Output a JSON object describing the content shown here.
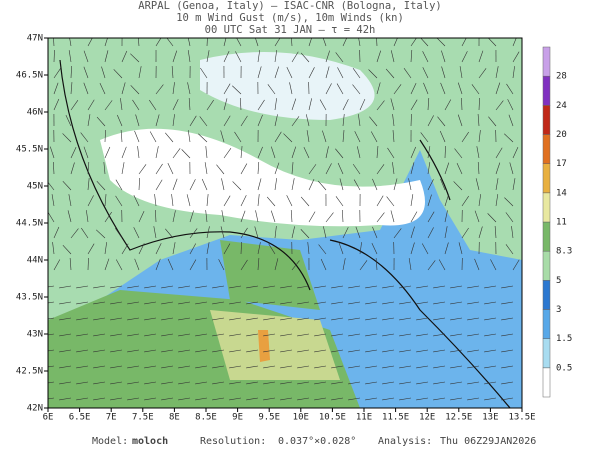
{
  "header": {
    "lines": [
      "ARPAL (Genoa, Italy)  –  ISAC-CNR (Bologna, Italy)",
      "10 m Wind Gust (m/s), 10m Winds (kn)",
      "00 UTC Sat 31 JAN  –  τ = 42h"
    ]
  },
  "map": {
    "lon_ticks": [
      "6E",
      "6.5E",
      "7E",
      "7.5E",
      "8E",
      "8.5E",
      "9E",
      "9.5E",
      "10E",
      "10.5E",
      "11E",
      "11.5E",
      "12E",
      "12.5E",
      "13E",
      "13.5E"
    ],
    "lat_ticks": [
      "42N",
      "42.5N",
      "43N",
      "43.5N",
      "44N",
      "44.5N",
      "45N",
      "45.5N",
      "46N",
      "46.5N",
      "47N"
    ]
  },
  "colorbar": {
    "labels": [
      "0.5",
      "1.5",
      "3",
      "5",
      "8.3",
      "11",
      "14",
      "17",
      "20",
      "24",
      "28"
    ],
    "colors": [
      "#ffffff",
      "#a8dcf0",
      "#58a8e8",
      "#2c78d0",
      "#a8dca8",
      "#78b868",
      "#e8e8a0",
      "#e8b040",
      "#e07020",
      "#c02818",
      "#8030c0",
      "#c8a0e8"
    ]
  },
  "footer": {
    "model_label": "Model:",
    "model": "moloch",
    "resolution_label": "Resolution:",
    "resolution": "0.037°×0.028°",
    "analysis_label": "Analysis:",
    "analysis": "Thu 06Z29JAN2026"
  }
}
